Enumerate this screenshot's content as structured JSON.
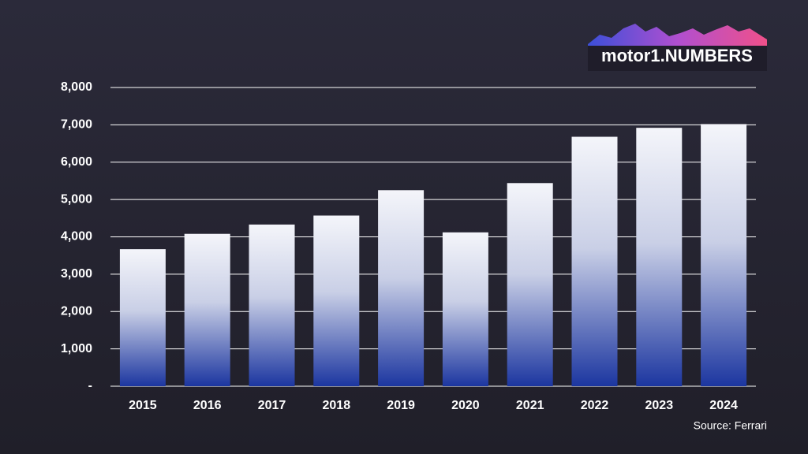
{
  "chart_data": {
    "type": "bar",
    "brand": "motor1.NUMBERS",
    "source": "Source: Ferrari",
    "categories": [
      "2015",
      "2016",
      "2017",
      "2018",
      "2019",
      "2020",
      "2021",
      "2022",
      "2023",
      "2024"
    ],
    "values": [
      3670,
      4080,
      4330,
      4570,
      5250,
      4120,
      5440,
      6680,
      6920,
      7020
    ],
    "color": "#1c36a0",
    "ylim": [
      0,
      8000
    ],
    "yticks": [
      {
        "value": 0,
        "label": "-"
      },
      {
        "value": 1000,
        "label": "1,000"
      },
      {
        "value": 2000,
        "label": "2,000"
      },
      {
        "value": 3000,
        "label": "3,000"
      },
      {
        "value": 4000,
        "label": "4,000"
      },
      {
        "value": 5000,
        "label": "5,000"
      },
      {
        "value": 6000,
        "label": "6,000"
      },
      {
        "value": 7000,
        "label": "7,000"
      },
      {
        "value": 8000,
        "label": "8,000"
      }
    ],
    "grid": true
  }
}
